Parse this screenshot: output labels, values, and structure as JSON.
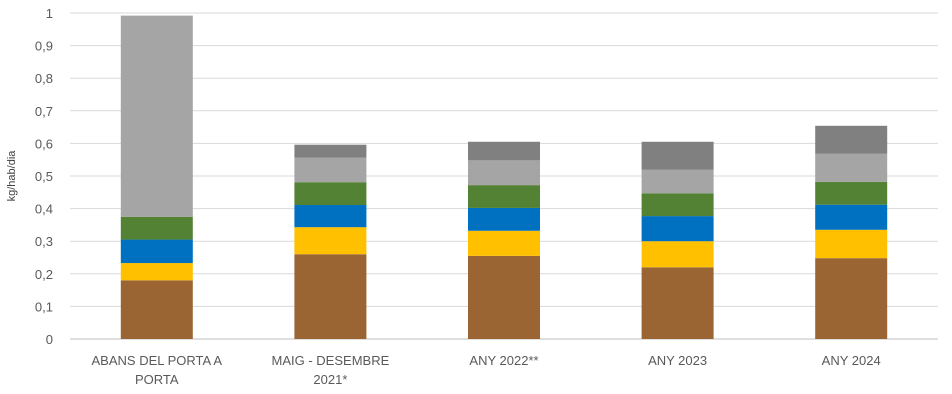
{
  "chart_data": {
    "type": "bar",
    "stacked": true,
    "title": "",
    "xlabel": "",
    "ylabel": "kg/hab/dia",
    "ylim": [
      0,
      1
    ],
    "yticks": [
      "0",
      "0,1",
      "0,2",
      "0,3",
      "0,4",
      "0,5",
      "0,6",
      "0,7",
      "0,8",
      "0,9",
      "1"
    ],
    "grid": true,
    "legend": "none",
    "categories": [
      [
        "ABANS DEL PORTA A",
        "PORTA"
      ],
      [
        "MAIG - DESEMBRE",
        "2021*"
      ],
      [
        "ANY 2022**"
      ],
      [
        "ANY 2023"
      ],
      [
        "ANY 2024"
      ]
    ],
    "series": [
      {
        "color": "#9A6533",
        "values": [
          0.18,
          0.26,
          0.255,
          0.22,
          0.248
        ]
      },
      {
        "color": "#FFC000",
        "values": [
          0.053,
          0.083,
          0.077,
          0.08,
          0.087
        ]
      },
      {
        "color": "#0070C0",
        "values": [
          0.072,
          0.068,
          0.07,
          0.077,
          0.077
        ]
      },
      {
        "color": "#548235",
        "values": [
          0.07,
          0.07,
          0.07,
          0.07,
          0.07
        ]
      },
      {
        "color": "#A5A5A5",
        "values": [
          0.617,
          0.075,
          0.076,
          0.072,
          0.087
        ]
      },
      {
        "color": "#808080",
        "values": [
          0,
          0.04,
          0.057,
          0.086,
          0.085
        ]
      }
    ]
  }
}
